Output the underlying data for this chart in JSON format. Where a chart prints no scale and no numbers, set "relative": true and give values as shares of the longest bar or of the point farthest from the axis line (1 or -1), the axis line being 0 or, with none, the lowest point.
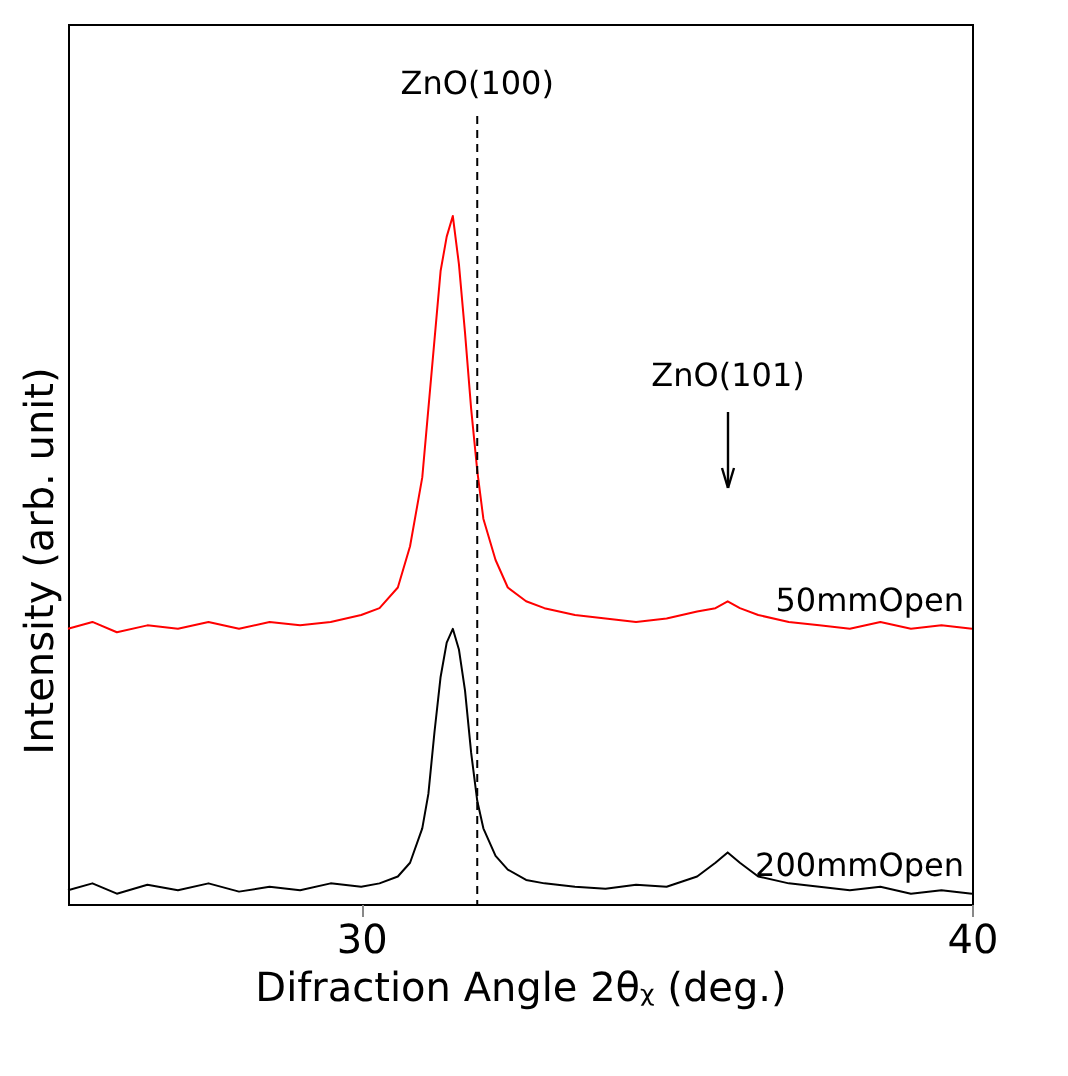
{
  "chart_data": {
    "type": "line",
    "xlabel": "Difraction Angle 2θᵪ (deg.)",
    "ylabel": "Intensity (arb. unit)",
    "relative": true,
    "xlim": [
      25.2,
      40
    ],
    "xticks": [
      30,
      40
    ],
    "grid": false,
    "legend": false,
    "marker": "none",
    "line_style": "solid",
    "series": [
      {
        "name": "50mmOpen",
        "color": "#ff0000",
        "x": [
          25.2,
          25.6,
          26,
          26.5,
          27,
          27.5,
          28,
          28.5,
          29,
          29.5,
          30,
          30.3,
          30.6,
          30.8,
          31.0,
          31.1,
          31.2,
          31.3,
          31.4,
          31.5,
          31.6,
          31.7,
          31.8,
          31.9,
          32.0,
          32.2,
          32.4,
          32.7,
          33,
          33.5,
          34,
          34.5,
          35,
          35.5,
          35.8,
          36.0,
          36.2,
          36.5,
          37,
          37.5,
          38,
          38.5,
          39,
          39.5,
          40
        ],
        "values": [
          0.4,
          0.41,
          0.395,
          0.405,
          0.4,
          0.41,
          0.4,
          0.41,
          0.405,
          0.41,
          0.42,
          0.43,
          0.46,
          0.52,
          0.62,
          0.72,
          0.82,
          0.92,
          0.97,
          1.0,
          0.93,
          0.83,
          0.72,
          0.63,
          0.56,
          0.5,
          0.46,
          0.44,
          0.43,
          0.42,
          0.415,
          0.41,
          0.415,
          0.425,
          0.43,
          0.44,
          0.43,
          0.42,
          0.41,
          0.405,
          0.4,
          0.41,
          0.4,
          0.405,
          0.4
        ]
      },
      {
        "name": "200mmOpen",
        "color": "#000000",
        "x": [
          25.2,
          25.6,
          26,
          26.5,
          27,
          27.5,
          28,
          28.5,
          29,
          29.5,
          30,
          30.3,
          30.6,
          30.8,
          31.0,
          31.1,
          31.2,
          31.3,
          31.4,
          31.5,
          31.6,
          31.7,
          31.8,
          31.9,
          32.0,
          32.2,
          32.4,
          32.7,
          33,
          33.5,
          34,
          34.5,
          35,
          35.5,
          35.8,
          36.0,
          36.2,
          36.5,
          37,
          37.5,
          38,
          38.5,
          39,
          39.5,
          40
        ],
        "values": [
          0.02,
          0.03,
          0.015,
          0.028,
          0.02,
          0.03,
          0.018,
          0.025,
          0.02,
          0.03,
          0.025,
          0.03,
          0.04,
          0.06,
          0.11,
          0.16,
          0.25,
          0.33,
          0.38,
          0.4,
          0.37,
          0.31,
          0.22,
          0.15,
          0.11,
          0.07,
          0.05,
          0.035,
          0.03,
          0.025,
          0.022,
          0.028,
          0.025,
          0.04,
          0.06,
          0.075,
          0.06,
          0.04,
          0.03,
          0.025,
          0.02,
          0.025,
          0.015,
          0.02,
          0.015
        ]
      }
    ],
    "ref_lines": [
      {
        "axis": "x",
        "value": 31.9,
        "label": "ZnO(100)",
        "color": "#000000",
        "line_style": "dashed"
      }
    ],
    "annotations": [
      "ZnO(101)"
    ]
  }
}
